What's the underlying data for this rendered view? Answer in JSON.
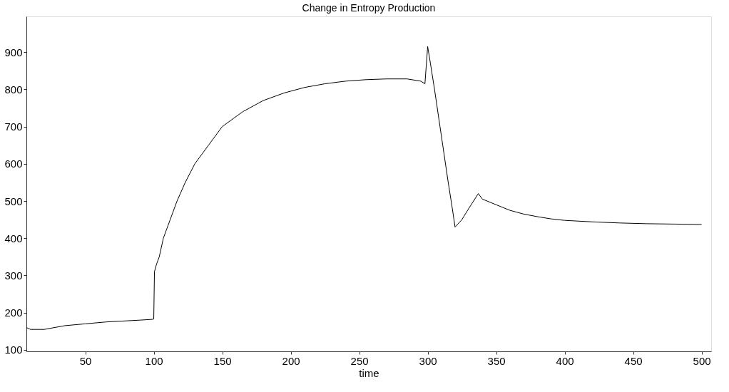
{
  "chart_data": {
    "type": "line",
    "title": "Change in Entropy Production",
    "xlabel": "time",
    "x": [
      7,
      10,
      20,
      35,
      50,
      65,
      80,
      90,
      99,
      100,
      100.5,
      102,
      104,
      107,
      112,
      117,
      123,
      130,
      140,
      150,
      165,
      180,
      195,
      210,
      225,
      240,
      255,
      270,
      285,
      295,
      298,
      300,
      302,
      305,
      309,
      311,
      315,
      318,
      320,
      325,
      330,
      337,
      340,
      350,
      360,
      370,
      380,
      390,
      400,
      420,
      440,
      460,
      480,
      500
    ],
    "series": [
      {
        "color": "#000000",
        "values": [
          160,
          155,
          155,
          165,
          170,
          175,
          178,
          180,
          182,
          183,
          310,
          330,
          350,
          400,
          450,
          500,
          550,
          600,
          650,
          700,
          740,
          770,
          790,
          805,
          815,
          822,
          826,
          828,
          828,
          822,
          815,
          915,
          870,
          800,
          700,
          650,
          550,
          480,
          430,
          450,
          480,
          520,
          505,
          490,
          475,
          465,
          458,
          452,
          448,
          444,
          441,
          439,
          438,
          437
        ]
      }
    ],
    "xlim": [
      7,
      507
    ],
    "ylim": [
      96,
      996
    ],
    "xticks": [
      50,
      100,
      150,
      200,
      250,
      300,
      350,
      400,
      450,
      500
    ],
    "yticks": [
      100,
      200,
      300,
      400,
      500,
      600,
      700,
      800,
      900
    ],
    "grid": false,
    "legend": false
  }
}
